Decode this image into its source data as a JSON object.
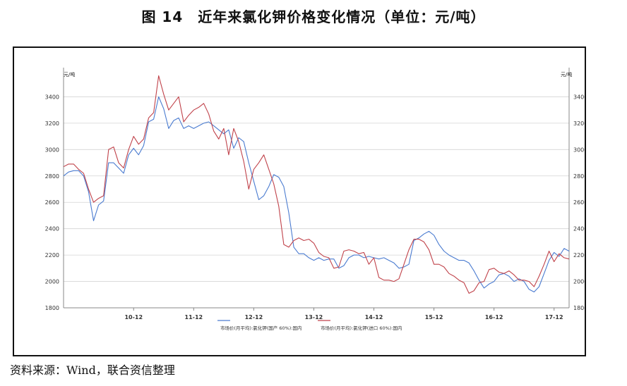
{
  "figure": {
    "title": "图 14　近年来氯化钾价格变化情况（单位：元/吨）",
    "source": "资料来源：Wind，联合资信整理"
  },
  "colors": {
    "domestic": "#4a7bd0",
    "import": "#c0424a",
    "grid": "#d4d4d4",
    "axis": "#888888"
  },
  "chart_data": {
    "type": "line",
    "unit_left": "元/吨",
    "unit_right": "元/吨",
    "x_ticks": [
      "10-12",
      "11-12",
      "12-12",
      "13-12",
      "14-12",
      "15-12",
      "16-12",
      "17-12"
    ],
    "x_range": [
      "2009-10",
      "2018-03"
    ],
    "ylim": [
      1800,
      3600
    ],
    "yticks": [
      1800,
      2000,
      2200,
      2400,
      2600,
      2800,
      3000,
      3200,
      3400
    ],
    "grid": true,
    "legend_position": "bottom",
    "series": [
      {
        "name": "市场价(月平均):氯化钾(国产 60%):国内",
        "color": "#4a7bd0",
        "points": [
          [
            "2009-10",
            2800
          ],
          [
            "2009-11",
            2830
          ],
          [
            "2009-12",
            2840
          ],
          [
            "2010-01",
            2840
          ],
          [
            "2010-02",
            2800
          ],
          [
            "2010-03",
            2680
          ],
          [
            "2010-04",
            2460
          ],
          [
            "2010-05",
            2580
          ],
          [
            "2010-06",
            2610
          ],
          [
            "2010-07",
            2900
          ],
          [
            "2010-08",
            2900
          ],
          [
            "2010-09",
            2860
          ],
          [
            "2010-10",
            2820
          ],
          [
            "2010-11",
            2960
          ],
          [
            "2010-12",
            3010
          ],
          [
            "2011-01",
            2960
          ],
          [
            "2011-02",
            3030
          ],
          [
            "2011-03",
            3210
          ],
          [
            "2011-04",
            3230
          ],
          [
            "2011-05",
            3400
          ],
          [
            "2011-06",
            3310
          ],
          [
            "2011-07",
            3160
          ],
          [
            "2011-08",
            3220
          ],
          [
            "2011-09",
            3240
          ],
          [
            "2011-10",
            3160
          ],
          [
            "2011-11",
            3180
          ],
          [
            "2011-12",
            3160
          ],
          [
            "2012-01",
            3180
          ],
          [
            "2012-02",
            3200
          ],
          [
            "2012-03",
            3210
          ],
          [
            "2012-04",
            3180
          ],
          [
            "2012-05",
            3150
          ],
          [
            "2012-06",
            3120
          ],
          [
            "2012-07",
            3150
          ],
          [
            "2012-08",
            3010
          ],
          [
            "2012-09",
            3090
          ],
          [
            "2012-10",
            3060
          ],
          [
            "2012-11",
            2900
          ],
          [
            "2012-12",
            2760
          ],
          [
            "2013-01",
            2620
          ],
          [
            "2013-02",
            2650
          ],
          [
            "2013-03",
            2720
          ],
          [
            "2013-04",
            2810
          ],
          [
            "2013-05",
            2790
          ],
          [
            "2013-06",
            2720
          ],
          [
            "2013-07",
            2520
          ],
          [
            "2013-08",
            2260
          ],
          [
            "2013-09",
            2210
          ],
          [
            "2013-10",
            2210
          ],
          [
            "2013-11",
            2180
          ],
          [
            "2013-12",
            2160
          ],
          [
            "2014-01",
            2180
          ],
          [
            "2014-02",
            2160
          ],
          [
            "2014-03",
            2170
          ],
          [
            "2014-04",
            2170
          ],
          [
            "2014-05",
            2100
          ],
          [
            "2014-06",
            2120
          ],
          [
            "2014-07",
            2180
          ],
          [
            "2014-08",
            2200
          ],
          [
            "2014-09",
            2200
          ],
          [
            "2014-10",
            2180
          ],
          [
            "2014-11",
            2190
          ],
          [
            "2014-12",
            2180
          ],
          [
            "2015-01",
            2170
          ],
          [
            "2015-02",
            2180
          ],
          [
            "2015-03",
            2160
          ],
          [
            "2015-04",
            2140
          ],
          [
            "2015-05",
            2100
          ],
          [
            "2015-06",
            2110
          ],
          [
            "2015-07",
            2130
          ],
          [
            "2015-08",
            2310
          ],
          [
            "2015-09",
            2330
          ],
          [
            "2015-10",
            2360
          ],
          [
            "2015-11",
            2380
          ],
          [
            "2015-12",
            2350
          ],
          [
            "2016-01",
            2280
          ],
          [
            "2016-02",
            2230
          ],
          [
            "2016-03",
            2200
          ],
          [
            "2016-04",
            2180
          ],
          [
            "2016-05",
            2160
          ],
          [
            "2016-06",
            2160
          ],
          [
            "2016-07",
            2140
          ],
          [
            "2016-08",
            2080
          ],
          [
            "2016-09",
            2010
          ],
          [
            "2016-10",
            1950
          ],
          [
            "2016-11",
            1980
          ],
          [
            "2016-12",
            2000
          ],
          [
            "2017-01",
            2050
          ],
          [
            "2017-02",
            2060
          ],
          [
            "2017-03",
            2040
          ],
          [
            "2017-04",
            2000
          ],
          [
            "2017-05",
            2020
          ],
          [
            "2017-06",
            2000
          ],
          [
            "2017-07",
            1940
          ],
          [
            "2017-08",
            1920
          ],
          [
            "2017-09",
            1960
          ],
          [
            "2017-10",
            2060
          ],
          [
            "2017-11",
            2160
          ],
          [
            "2017-12",
            2220
          ],
          [
            "2018-01",
            2190
          ],
          [
            "2018-02",
            2250
          ],
          [
            "2018-03",
            2230
          ]
        ]
      },
      {
        "name": "市场价(月平均):氯化钾(进口 60%):国内",
        "color": "#c0424a",
        "points": [
          [
            "2009-10",
            2870
          ],
          [
            "2009-11",
            2890
          ],
          [
            "2009-12",
            2890
          ],
          [
            "2010-01",
            2850
          ],
          [
            "2010-02",
            2820
          ],
          [
            "2010-03",
            2700
          ],
          [
            "2010-04",
            2600
          ],
          [
            "2010-05",
            2630
          ],
          [
            "2010-06",
            2650
          ],
          [
            "2010-07",
            3000
          ],
          [
            "2010-08",
            3020
          ],
          [
            "2010-09",
            2900
          ],
          [
            "2010-10",
            2860
          ],
          [
            "2010-11",
            3000
          ],
          [
            "2010-12",
            3100
          ],
          [
            "2011-01",
            3040
          ],
          [
            "2011-02",
            3080
          ],
          [
            "2011-03",
            3240
          ],
          [
            "2011-04",
            3280
          ],
          [
            "2011-05",
            3560
          ],
          [
            "2011-06",
            3420
          ],
          [
            "2011-07",
            3300
          ],
          [
            "2011-08",
            3350
          ],
          [
            "2011-09",
            3400
          ],
          [
            "2011-10",
            3210
          ],
          [
            "2011-11",
            3260
          ],
          [
            "2011-12",
            3300
          ],
          [
            "2012-01",
            3320
          ],
          [
            "2012-02",
            3350
          ],
          [
            "2012-03",
            3270
          ],
          [
            "2012-04",
            3140
          ],
          [
            "2012-05",
            3080
          ],
          [
            "2012-06",
            3160
          ],
          [
            "2012-07",
            2960
          ],
          [
            "2012-08",
            3160
          ],
          [
            "2012-09",
            3060
          ],
          [
            "2012-10",
            2910
          ],
          [
            "2012-11",
            2700
          ],
          [
            "2012-12",
            2850
          ],
          [
            "2013-01",
            2900
          ],
          [
            "2013-02",
            2960
          ],
          [
            "2013-03",
            2850
          ],
          [
            "2013-04",
            2740
          ],
          [
            "2013-05",
            2570
          ],
          [
            "2013-06",
            2280
          ],
          [
            "2013-07",
            2260
          ],
          [
            "2013-08",
            2310
          ],
          [
            "2013-09",
            2330
          ],
          [
            "2013-10",
            2310
          ],
          [
            "2013-11",
            2320
          ],
          [
            "2013-12",
            2290
          ],
          [
            "2014-01",
            2220
          ],
          [
            "2014-02",
            2190
          ],
          [
            "2014-03",
            2180
          ],
          [
            "2014-04",
            2100
          ],
          [
            "2014-05",
            2110
          ],
          [
            "2014-06",
            2230
          ],
          [
            "2014-07",
            2240
          ],
          [
            "2014-08",
            2230
          ],
          [
            "2014-09",
            2210
          ],
          [
            "2014-10",
            2220
          ],
          [
            "2014-11",
            2130
          ],
          [
            "2014-12",
            2180
          ],
          [
            "2015-01",
            2030
          ],
          [
            "2015-02",
            2010
          ],
          [
            "2015-03",
            2010
          ],
          [
            "2015-04",
            2000
          ],
          [
            "2015-05",
            2020
          ],
          [
            "2015-06",
            2130
          ],
          [
            "2015-07",
            2240
          ],
          [
            "2015-08",
            2320
          ],
          [
            "2015-09",
            2320
          ],
          [
            "2015-10",
            2300
          ],
          [
            "2015-11",
            2240
          ],
          [
            "2015-12",
            2130
          ],
          [
            "2016-01",
            2130
          ],
          [
            "2016-02",
            2110
          ],
          [
            "2016-03",
            2060
          ],
          [
            "2016-04",
            2040
          ],
          [
            "2016-05",
            2010
          ],
          [
            "2016-06",
            1990
          ],
          [
            "2016-07",
            1910
          ],
          [
            "2016-08",
            1930
          ],
          [
            "2016-09",
            1990
          ],
          [
            "2016-10",
            2000
          ],
          [
            "2016-11",
            2090
          ],
          [
            "2016-12",
            2100
          ],
          [
            "2017-01",
            2070
          ],
          [
            "2017-02",
            2060
          ],
          [
            "2017-03",
            2080
          ],
          [
            "2017-04",
            2050
          ],
          [
            "2017-05",
            2010
          ],
          [
            "2017-06",
            2010
          ],
          [
            "2017-07",
            2000
          ],
          [
            "2017-08",
            1960
          ],
          [
            "2017-09",
            2040
          ],
          [
            "2017-10",
            2130
          ],
          [
            "2017-11",
            2230
          ],
          [
            "2017-12",
            2150
          ],
          [
            "2018-01",
            2210
          ],
          [
            "2018-02",
            2180
          ],
          [
            "2018-03",
            2170
          ]
        ]
      }
    ]
  }
}
